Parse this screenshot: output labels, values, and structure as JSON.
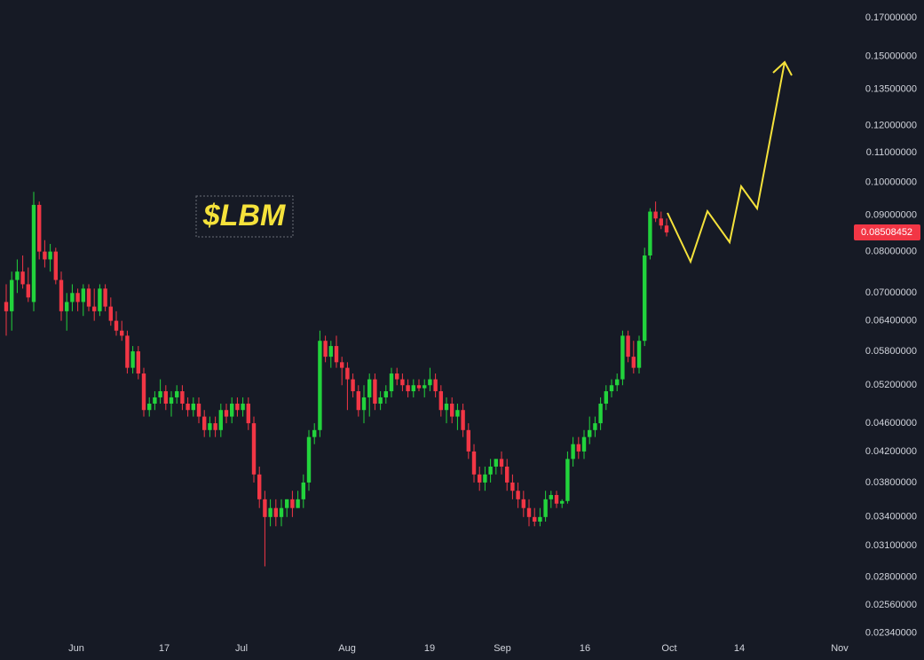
{
  "chart_data": {
    "type": "candlestick",
    "annotation": "$LBM",
    "log_scale": true,
    "grid": false,
    "up_color": "#22d33c",
    "down_color": "#f23645",
    "projection_color": "#f5e23b",
    "ylim": [
      0.0231,
      0.18
    ],
    "yticks": [
      {
        "value": 0.17,
        "label": "0.17000000"
      },
      {
        "value": 0.15,
        "label": "0.15000000"
      },
      {
        "value": 0.135,
        "label": "0.13500000"
      },
      {
        "value": 0.12,
        "label": "0.12000000"
      },
      {
        "value": 0.11,
        "label": "0.11000000"
      },
      {
        "value": 0.1,
        "label": "0.10000000"
      },
      {
        "value": 0.09,
        "label": "0.09000000"
      },
      {
        "value": 0.08,
        "label": "0.08000000"
      },
      {
        "value": 0.07,
        "label": "0.07000000"
      },
      {
        "value": 0.064,
        "label": "0.06400000"
      },
      {
        "value": 0.058,
        "label": "0.05800000"
      },
      {
        "value": 0.052,
        "label": "0.05200000"
      },
      {
        "value": 0.046,
        "label": "0.04600000"
      },
      {
        "value": 0.042,
        "label": "0.04200000"
      },
      {
        "value": 0.038,
        "label": "0.03800000"
      },
      {
        "value": 0.034,
        "label": "0.03400000"
      },
      {
        "value": 0.031,
        "label": "0.03100000"
      },
      {
        "value": 0.028,
        "label": "0.02800000"
      },
      {
        "value": 0.0256,
        "label": "0.02560000"
      },
      {
        "value": 0.0234,
        "label": "0.02340000"
      }
    ],
    "xlim": [
      -1.13,
      152.9
    ],
    "xticks": [
      {
        "value": 12.74,
        "label": "Jun"
      },
      {
        "value": 28.71,
        "label": "17"
      },
      {
        "value": 42.74,
        "label": "Jul"
      },
      {
        "value": 61.94,
        "label": "Aug"
      },
      {
        "value": 76.93,
        "label": "19"
      },
      {
        "value": 90.16,
        "label": "Sep"
      },
      {
        "value": 105.16,
        "label": "16"
      },
      {
        "value": 120.48,
        "label": "Oct"
      },
      {
        "value": 133.22,
        "label": "14"
      },
      {
        "value": 151.45,
        "label": "Nov"
      }
    ],
    "candles": [
      [
        0.068,
        0.072,
        0.061,
        0.066
      ],
      [
        0.066,
        0.075,
        0.062,
        0.073
      ],
      [
        0.073,
        0.078,
        0.07,
        0.075
      ],
      [
        0.075,
        0.079,
        0.071,
        0.072
      ],
      [
        0.072,
        0.076,
        0.068,
        0.069
      ],
      [
        0.068,
        0.097,
        0.066,
        0.093
      ],
      [
        0.093,
        0.094,
        0.078,
        0.08
      ],
      [
        0.08,
        0.083,
        0.076,
        0.078
      ],
      [
        0.078,
        0.082,
        0.075,
        0.08
      ],
      [
        0.08,
        0.081,
        0.072,
        0.073
      ],
      [
        0.073,
        0.075,
        0.064,
        0.066
      ],
      [
        0.066,
        0.07,
        0.062,
        0.068
      ],
      [
        0.068,
        0.072,
        0.066,
        0.07
      ],
      [
        0.07,
        0.071,
        0.066,
        0.068
      ],
      [
        0.068,
        0.072,
        0.065,
        0.071
      ],
      [
        0.071,
        0.072,
        0.066,
        0.067
      ],
      [
        0.067,
        0.071,
        0.064,
        0.066
      ],
      [
        0.066,
        0.072,
        0.065,
        0.071
      ],
      [
        0.071,
        0.072,
        0.066,
        0.067
      ],
      [
        0.067,
        0.069,
        0.063,
        0.064
      ],
      [
        0.064,
        0.066,
        0.061,
        0.062
      ],
      [
        0.062,
        0.064,
        0.06,
        0.061
      ],
      [
        0.061,
        0.062,
        0.054,
        0.055
      ],
      [
        0.055,
        0.059,
        0.054,
        0.058
      ],
      [
        0.058,
        0.059,
        0.053,
        0.054
      ],
      [
        0.054,
        0.055,
        0.047,
        0.048
      ],
      [
        0.048,
        0.05,
        0.047,
        0.049
      ],
      [
        0.049,
        0.051,
        0.048,
        0.05
      ],
      [
        0.05,
        0.053,
        0.049,
        0.051
      ],
      [
        0.051,
        0.052,
        0.048,
        0.049
      ],
      [
        0.049,
        0.051,
        0.047,
        0.05
      ],
      [
        0.05,
        0.052,
        0.049,
        0.051
      ],
      [
        0.051,
        0.052,
        0.048,
        0.049
      ],
      [
        0.049,
        0.05,
        0.047,
        0.048
      ],
      [
        0.048,
        0.05,
        0.047,
        0.049
      ],
      [
        0.049,
        0.05,
        0.046,
        0.047
      ],
      [
        0.047,
        0.048,
        0.044,
        0.045
      ],
      [
        0.045,
        0.047,
        0.044,
        0.046
      ],
      [
        0.046,
        0.047,
        0.044,
        0.045
      ],
      [
        0.045,
        0.049,
        0.044,
        0.048
      ],
      [
        0.048,
        0.049,
        0.046,
        0.047
      ],
      [
        0.047,
        0.05,
        0.046,
        0.049
      ],
      [
        0.049,
        0.05,
        0.047,
        0.048
      ],
      [
        0.048,
        0.05,
        0.047,
        0.049
      ],
      [
        0.049,
        0.05,
        0.045,
        0.046
      ],
      [
        0.046,
        0.047,
        0.038,
        0.039
      ],
      [
        0.039,
        0.04,
        0.035,
        0.036
      ],
      [
        0.036,
        0.037,
        0.029,
        0.034
      ],
      [
        0.034,
        0.036,
        0.033,
        0.035
      ],
      [
        0.035,
        0.036,
        0.033,
        0.034
      ],
      [
        0.034,
        0.036,
        0.033,
        0.035
      ],
      [
        0.035,
        0.036,
        0.034,
        0.036
      ],
      [
        0.036,
        0.037,
        0.034,
        0.035
      ],
      [
        0.035,
        0.037,
        0.035,
        0.036
      ],
      [
        0.036,
        0.039,
        0.035,
        0.038
      ],
      [
        0.038,
        0.045,
        0.037,
        0.044
      ],
      [
        0.044,
        0.046,
        0.043,
        0.045
      ],
      [
        0.045,
        0.062,
        0.044,
        0.06
      ],
      [
        0.06,
        0.061,
        0.056,
        0.057
      ],
      [
        0.057,
        0.06,
        0.055,
        0.059
      ],
      [
        0.059,
        0.061,
        0.055,
        0.056
      ],
      [
        0.056,
        0.057,
        0.052,
        0.055
      ],
      [
        0.055,
        0.056,
        0.048,
        0.053
      ],
      [
        0.053,
        0.054,
        0.05,
        0.051
      ],
      [
        0.051,
        0.052,
        0.047,
        0.048
      ],
      [
        0.048,
        0.052,
        0.046,
        0.05
      ],
      [
        0.05,
        0.054,
        0.047,
        0.053
      ],
      [
        0.053,
        0.054,
        0.048,
        0.049
      ],
      [
        0.049,
        0.051,
        0.048,
        0.05
      ],
      [
        0.05,
        0.052,
        0.049,
        0.051
      ],
      [
        0.051,
        0.055,
        0.05,
        0.054
      ],
      [
        0.054,
        0.055,
        0.052,
        0.053
      ],
      [
        0.053,
        0.054,
        0.051,
        0.052
      ],
      [
        0.052,
        0.053,
        0.05,
        0.051
      ],
      [
        0.051,
        0.053,
        0.05,
        0.052
      ],
      [
        0.052,
        0.053,
        0.051,
        0.0515
      ],
      [
        0.0515,
        0.053,
        0.05,
        0.052
      ],
      [
        0.052,
        0.055,
        0.051,
        0.053
      ],
      [
        0.053,
        0.054,
        0.05,
        0.051
      ],
      [
        0.051,
        0.052,
        0.047,
        0.048
      ],
      [
        0.048,
        0.05,
        0.046,
        0.049
      ],
      [
        0.049,
        0.05,
        0.046,
        0.047
      ],
      [
        0.047,
        0.049,
        0.045,
        0.048
      ],
      [
        0.048,
        0.049,
        0.044,
        0.045
      ],
      [
        0.045,
        0.046,
        0.041,
        0.042
      ],
      [
        0.042,
        0.043,
        0.038,
        0.039
      ],
      [
        0.039,
        0.04,
        0.037,
        0.038
      ],
      [
        0.038,
        0.04,
        0.037,
        0.039
      ],
      [
        0.039,
        0.041,
        0.038,
        0.04
      ],
      [
        0.04,
        0.041,
        0.039,
        0.041
      ],
      [
        0.041,
        0.042,
        0.039,
        0.04
      ],
      [
        0.04,
        0.041,
        0.037,
        0.038
      ],
      [
        0.038,
        0.039,
        0.036,
        0.037
      ],
      [
        0.037,
        0.038,
        0.035,
        0.036
      ],
      [
        0.036,
        0.037,
        0.034,
        0.035
      ],
      [
        0.035,
        0.036,
        0.033,
        0.034
      ],
      [
        0.034,
        0.035,
        0.033,
        0.0335
      ],
      [
        0.0335,
        0.035,
        0.033,
        0.034
      ],
      [
        0.034,
        0.037,
        0.0335,
        0.036
      ],
      [
        0.036,
        0.037,
        0.035,
        0.0365
      ],
      [
        0.0365,
        0.037,
        0.035,
        0.0355
      ],
      [
        0.0355,
        0.036,
        0.035,
        0.0358
      ],
      [
        0.0358,
        0.042,
        0.0355,
        0.041
      ],
      [
        0.041,
        0.044,
        0.04,
        0.043
      ],
      [
        0.043,
        0.044,
        0.041,
        0.042
      ],
      [
        0.042,
        0.045,
        0.041,
        0.044
      ],
      [
        0.044,
        0.047,
        0.043,
        0.045
      ],
      [
        0.045,
        0.047,
        0.044,
        0.046
      ],
      [
        0.046,
        0.05,
        0.045,
        0.049
      ],
      [
        0.049,
        0.052,
        0.048,
        0.051
      ],
      [
        0.051,
        0.053,
        0.05,
        0.052
      ],
      [
        0.052,
        0.054,
        0.051,
        0.053
      ],
      [
        0.053,
        0.062,
        0.052,
        0.061
      ],
      [
        0.061,
        0.062,
        0.056,
        0.057
      ],
      [
        0.057,
        0.06,
        0.054,
        0.055
      ],
      [
        0.055,
        0.061,
        0.054,
        0.06
      ],
      [
        0.06,
        0.081,
        0.059,
        0.079
      ],
      [
        0.079,
        0.092,
        0.078,
        0.091
      ],
      [
        0.091,
        0.094,
        0.088,
        0.089
      ],
      [
        0.089,
        0.091,
        0.086,
        0.087
      ],
      [
        0.087,
        0.089,
        0.084,
        0.08508452
      ]
    ]
  }
}
